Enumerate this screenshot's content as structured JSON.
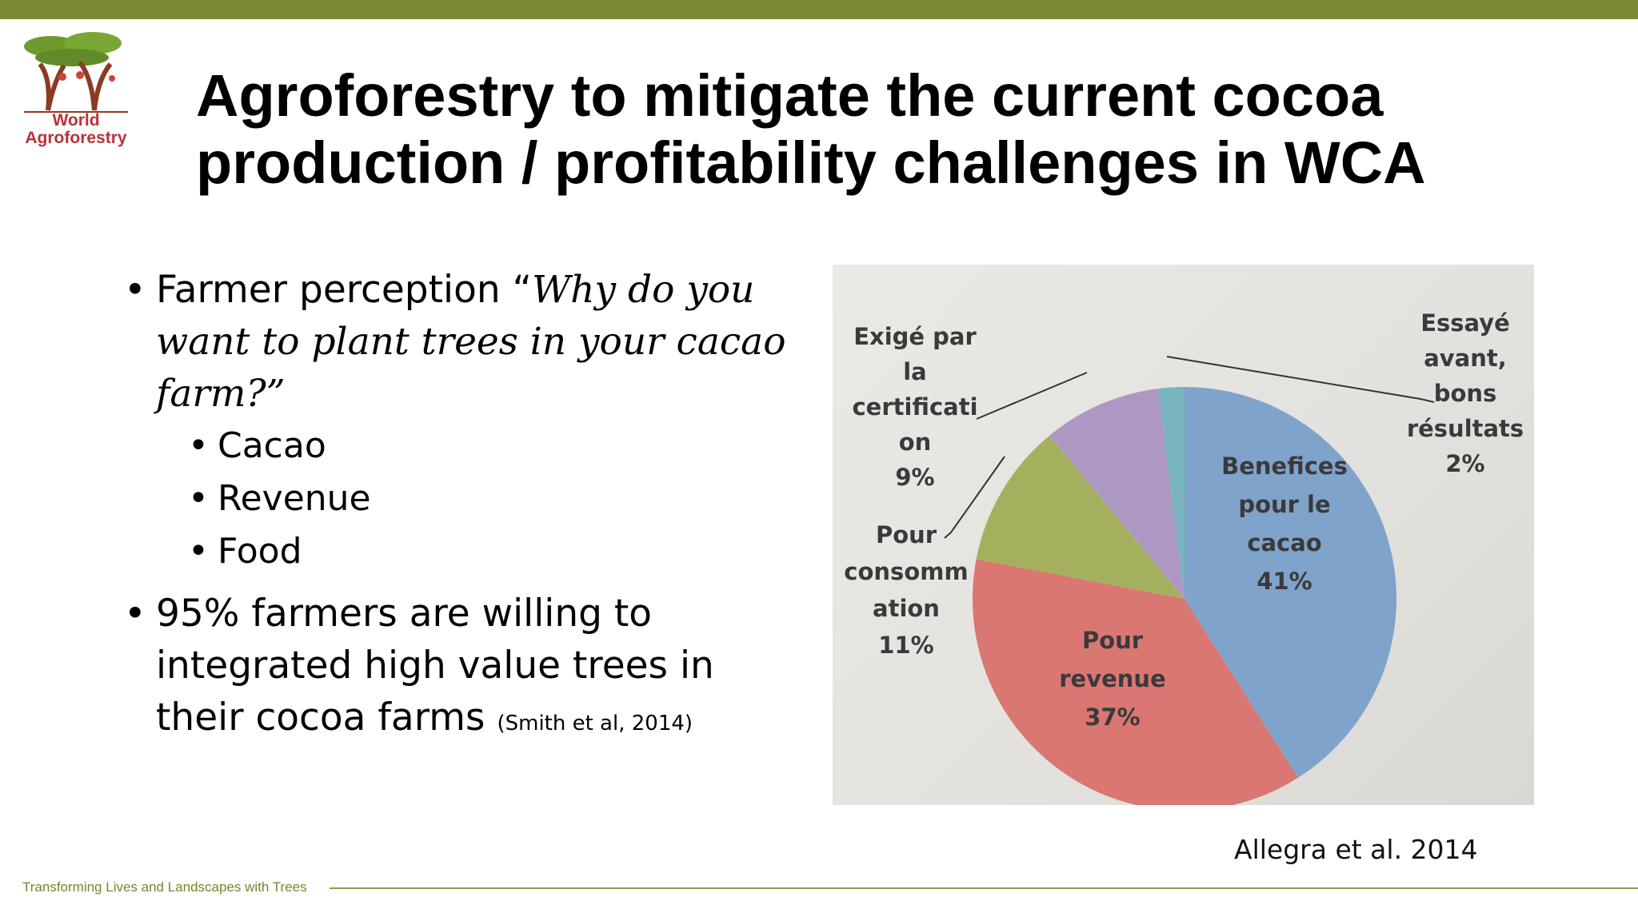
{
  "slide": {
    "title_line1": "Agroforestry to mitigate the current cocoa",
    "title_line2": "production / profitability challenges in WCA",
    "logo_line1": "World",
    "logo_line2": "Agroforestry",
    "footer": "Transforming Lives and Landscapes with Trees",
    "source": "Allegra et al. 2014"
  },
  "bullets": {
    "item1_lead": "Farmer perception “",
    "item1_quote": "Why do you want to plant trees in your cacao farm?",
    "item1_end": "”",
    "sub_items": [
      "Cacao",
      "Revenue",
      "Food"
    ],
    "item2": "95% farmers are willing to integrated high value trees in their cocoa farms",
    "item2_citation": "(Smith et al, 2014)"
  },
  "colors": {
    "topbar": "#7a8a34",
    "accent_green": "#6f8a2a",
    "logo_red": "#b8323a"
  },
  "chart_data": {
    "type": "pie",
    "title": "",
    "slices": [
      {
        "label_lines": [
          "Benefices",
          "pour le",
          "cacao"
        ],
        "pct_label": "41%",
        "value": 41,
        "color": "#7fa3cb"
      },
      {
        "label_lines": [
          "Pour",
          "revenue"
        ],
        "pct_label": "37%",
        "value": 37,
        "color": "#da7772"
      },
      {
        "label_lines": [
          "Pour",
          "consomm",
          "ation"
        ],
        "pct_label": "11%",
        "value": 11,
        "color": "#a5b05e"
      },
      {
        "label_lines": [
          "Exigé par",
          "la",
          "certificati",
          "on"
        ],
        "pct_label": "9%",
        "value": 9,
        "color": "#ad98c4"
      },
      {
        "label_lines": [
          "Essayé",
          "avant,",
          "bons",
          "résultats"
        ],
        "pct_label": "2%",
        "value": 2,
        "color": "#79b4bf"
      }
    ],
    "legend": "none"
  }
}
